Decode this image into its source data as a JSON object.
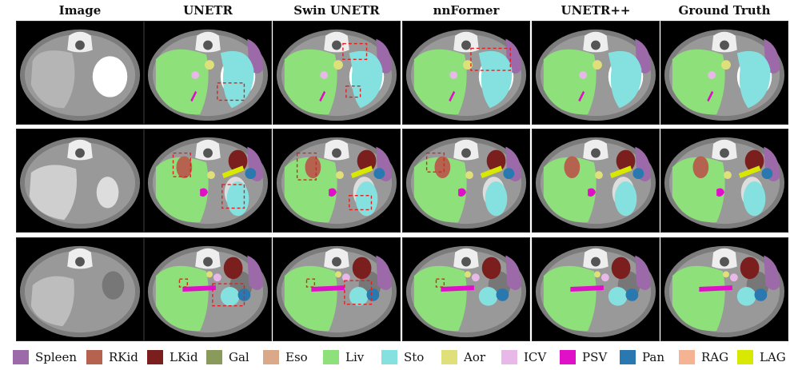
{
  "columns": [
    {
      "title": "Image"
    },
    {
      "title": "UNETR"
    },
    {
      "title": "Swin UNETR"
    },
    {
      "title": "nnFormer"
    },
    {
      "title": "UNETR++"
    },
    {
      "title": "Ground Truth"
    }
  ],
  "legend": [
    {
      "label": "Spleen",
      "color": "#9c6aa8"
    },
    {
      "label": "RKid",
      "color": "#b5624e"
    },
    {
      "label": "LKid",
      "color": "#7a1e1e"
    },
    {
      "label": "Gal",
      "color": "#8a9a5b"
    },
    {
      "label": "Eso",
      "color": "#d9a98a"
    },
    {
      "label": "Liv",
      "color": "#8ee07a"
    },
    {
      "label": "Sto",
      "color": "#85e0e0"
    },
    {
      "label": "Aor",
      "color": "#e0e07a"
    },
    {
      "label": "ICV",
      "color": "#e8b8e8"
    },
    {
      "label": "PSV",
      "color": "#e010c8"
    },
    {
      "label": "Pan",
      "color": "#2a78b0"
    },
    {
      "label": "RAG",
      "color": "#f4b493"
    },
    {
      "label": "LAG",
      "color": "#d8e800"
    }
  ]
}
